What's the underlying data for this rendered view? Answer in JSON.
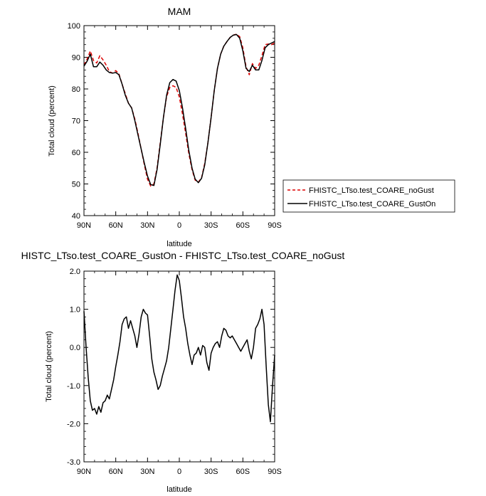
{
  "chart_data": [
    {
      "type": "line",
      "title": "MAM",
      "xlabel": "latitude",
      "ylabel": "Total cloud (percent)",
      "xlim": [
        90,
        -90
      ],
      "ylim": [
        40,
        100
      ],
      "x_ticks": [
        90,
        60,
        30,
        0,
        -30,
        -60,
        -90
      ],
      "x_tick_labels": [
        "90N",
        "60N",
        "30N",
        "0",
        "30S",
        "60S",
        "90S"
      ],
      "y_ticks": [
        40,
        50,
        60,
        70,
        80,
        90,
        100
      ],
      "y_tick_labels": [
        "40",
        "50",
        "60",
        "70",
        "80",
        "90",
        "100"
      ],
      "legend_position": "right",
      "series": [
        {
          "name": "FHISTC_LTso.test_COARE_noGust",
          "color": "#dd0000",
          "dash": "dashed",
          "x": [
            90,
            87,
            84,
            81,
            78,
            75,
            72,
            69,
            66,
            63,
            60,
            57,
            54,
            51,
            48,
            45,
            42,
            39,
            36,
            33,
            30,
            27,
            24,
            21,
            18,
            15,
            12,
            9,
            6,
            3,
            0,
            -3,
            -6,
            -9,
            -12,
            -15,
            -18,
            -21,
            -24,
            -27,
            -30,
            -33,
            -36,
            -39,
            -42,
            -45,
            -48,
            -51,
            -54,
            -57,
            -60,
            -63,
            -66,
            -69,
            -72,
            -75,
            -78,
            -81,
            -84,
            -87,
            -90
          ],
          "y": [
            87.5,
            89.5,
            92.0,
            89.0,
            88.2,
            90.5,
            89.2,
            87.5,
            85.5,
            85.0,
            85.8,
            84.8,
            81.5,
            78.5,
            75.5,
            74.0,
            70.5,
            66.0,
            61.0,
            56.0,
            51.5,
            49.3,
            50.0,
            55.0,
            63.0,
            71.0,
            77.5,
            80.5,
            81.0,
            80.5,
            77.5,
            72.0,
            66.0,
            59.5,
            54.5,
            51.2,
            50.6,
            52.0,
            56.5,
            63.0,
            71.0,
            79.5,
            86.5,
            91.0,
            93.5,
            95.0,
            96.3,
            97.0,
            97.3,
            96.5,
            93.0,
            87.0,
            84.5,
            88.0,
            86.5,
            87.5,
            90.5,
            94.0,
            94.2,
            94.0,
            94.5
          ]
        },
        {
          "name": "FHISTC_LTso.test_COARE_GustOn",
          "color": "#000000",
          "dash": "solid",
          "x": [
            90,
            87,
            84,
            81,
            78,
            75,
            72,
            69,
            66,
            63,
            60,
            57,
            54,
            51,
            48,
            45,
            42,
            39,
            36,
            33,
            30,
            27,
            24,
            21,
            18,
            15,
            12,
            9,
            6,
            3,
            0,
            -3,
            -6,
            -9,
            -12,
            -15,
            -18,
            -21,
            -24,
            -27,
            -30,
            -33,
            -36,
            -39,
            -42,
            -45,
            -48,
            -51,
            -54,
            -57,
            -60,
            -63,
            -66,
            -69,
            -72,
            -75,
            -78,
            -81,
            -84,
            -87,
            -90
          ],
          "y": [
            87.2,
            88.8,
            91.0,
            87.0,
            87.0,
            88.5,
            87.5,
            86.0,
            85.2,
            85.0,
            85.2,
            84.5,
            81.5,
            78.0,
            75.5,
            74.0,
            70.0,
            65.5,
            61.0,
            56.5,
            52.5,
            49.8,
            49.5,
            54.5,
            62.5,
            71.0,
            78.0,
            82.0,
            83.0,
            82.5,
            79.5,
            74.0,
            67.5,
            60.5,
            55.0,
            51.5,
            50.4,
            51.8,
            56.0,
            63.0,
            71.0,
            79.5,
            86.5,
            91.0,
            93.5,
            95.0,
            96.3,
            97.0,
            97.2,
            96.0,
            92.0,
            86.5,
            85.5,
            87.5,
            86.0,
            86.0,
            89.0,
            93.0,
            94.0,
            94.5,
            95.0
          ]
        }
      ]
    },
    {
      "type": "line",
      "title": "HISTC_LTso.test_COARE_GustOn - FHISTC_LTso.test_COARE_noGust",
      "xlabel": "latitude",
      "ylabel": "Total cloud (percent)",
      "xlim": [
        90,
        -90
      ],
      "ylim": [
        -3.0,
        2.0
      ],
      "x_ticks": [
        90,
        60,
        30,
        0,
        -30,
        -60,
        -90
      ],
      "x_tick_labels": [
        "90N",
        "60N",
        "30N",
        "0",
        "30S",
        "60S",
        "90S"
      ],
      "y_ticks": [
        -3,
        -2,
        -1,
        0,
        1,
        2
      ],
      "y_tick_labels": [
        "-3.0",
        "-2.0",
        "-1.0",
        "0.0",
        "1.0",
        "2.0"
      ],
      "series": [
        {
          "color": "#000000",
          "dash": "solid",
          "x": [
            90,
            88,
            86,
            84,
            82,
            80,
            78,
            76,
            74,
            72,
            70,
            68,
            66,
            64,
            62,
            60,
            58,
            56,
            54,
            52,
            50,
            48,
            46,
            44,
            42,
            40,
            38,
            36,
            34,
            32,
            30,
            28,
            26,
            24,
            22,
            20,
            18,
            16,
            14,
            12,
            10,
            8,
            6,
            4,
            2,
            0,
            -2,
            -4,
            -6,
            -8,
            -10,
            -12,
            -14,
            -16,
            -18,
            -20,
            -22,
            -24,
            -26,
            -28,
            -30,
            -32,
            -34,
            -36,
            -38,
            -40,
            -42,
            -44,
            -46,
            -48,
            -50,
            -52,
            -54,
            -56,
            -58,
            -60,
            -62,
            -64,
            -66,
            -68,
            -70,
            -72,
            -74,
            -76,
            -78,
            -80,
            -82,
            -84,
            -86,
            -88,
            -90
          ],
          "y": [
            0.95,
            0.0,
            -0.8,
            -1.4,
            -1.65,
            -1.6,
            -1.75,
            -1.55,
            -1.7,
            -1.45,
            -1.4,
            -1.25,
            -1.35,
            -1.1,
            -0.85,
            -0.5,
            -0.2,
            0.15,
            0.6,
            0.75,
            0.8,
            0.5,
            0.7,
            0.5,
            0.3,
            0.0,
            0.35,
            0.8,
            1.0,
            0.9,
            0.85,
            0.3,
            -0.3,
            -0.65,
            -0.85,
            -1.1,
            -1.0,
            -0.75,
            -0.55,
            -0.35,
            0.0,
            0.5,
            1.0,
            1.5,
            1.9,
            1.75,
            1.3,
            0.8,
            0.5,
            0.1,
            -0.2,
            -0.45,
            -0.2,
            -0.15,
            0.0,
            -0.2,
            0.05,
            0.0,
            -0.4,
            -0.6,
            -0.15,
            0.0,
            0.1,
            0.15,
            0.0,
            0.3,
            0.5,
            0.45,
            0.3,
            0.25,
            0.3,
            0.2,
            0.1,
            0.0,
            -0.1,
            0.0,
            0.1,
            0.2,
            -0.1,
            -0.3,
            0.0,
            0.5,
            0.6,
            0.75,
            1.0,
            0.6,
            -0.5,
            -1.5,
            -1.95,
            -1.0,
            -0.2
          ]
        }
      ]
    }
  ]
}
